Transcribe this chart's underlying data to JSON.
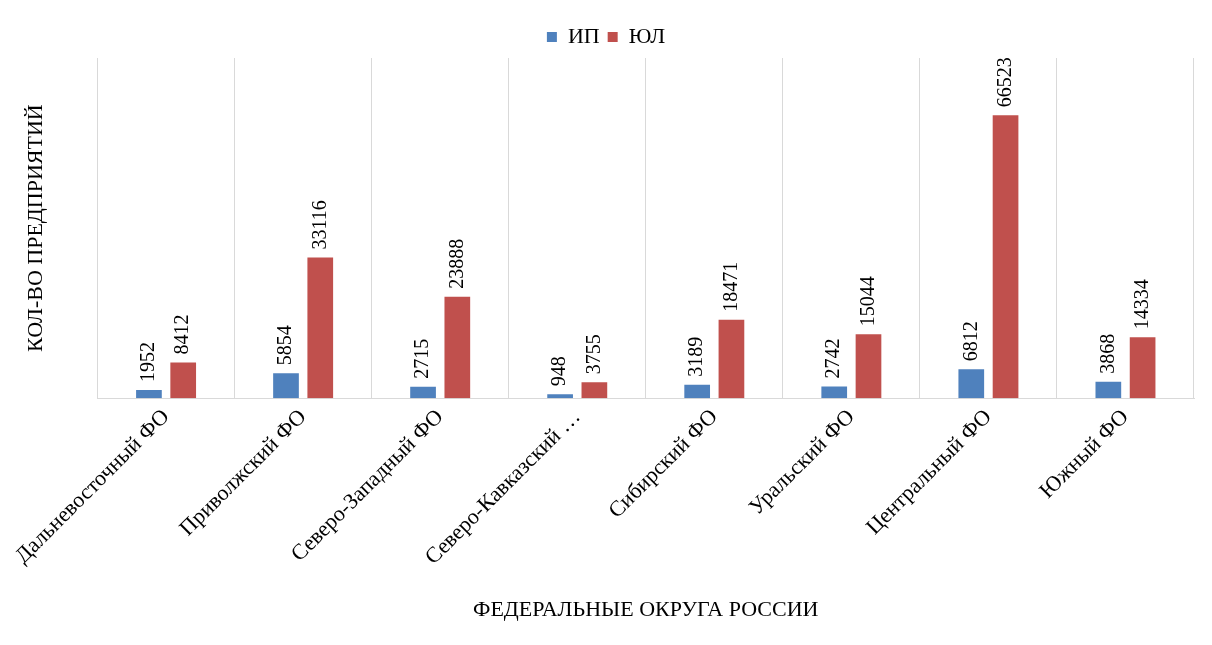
{
  "chart_data": {
    "type": "bar",
    "xlabel": "ФЕДЕРАЛЬНЫЕ ОКРУГА РОССИИ",
    "ylabel": "КОЛ-ВО ПРЕДПРИЯТИЙ",
    "categories": [
      "Дальневосточный ФО",
      "Приволжский ФО",
      "Северо-Западный ФО",
      "Северо-Кавказский …",
      "Сибирский ФО",
      "Уральский ФО",
      "Центральный ФО",
      "Южный ФО"
    ],
    "series": [
      {
        "name": "ИП",
        "color": "#4f81bd",
        "values": [
          1952,
          5854,
          2715,
          948,
          3189,
          2742,
          6812,
          3868
        ]
      },
      {
        "name": "ЮЛ",
        "color": "#c0504d",
        "values": [
          8412,
          33116,
          23888,
          3755,
          18471,
          15044,
          66523,
          14334
        ]
      }
    ],
    "data_labels": true,
    "grid": "x",
    "legend": "top"
  }
}
